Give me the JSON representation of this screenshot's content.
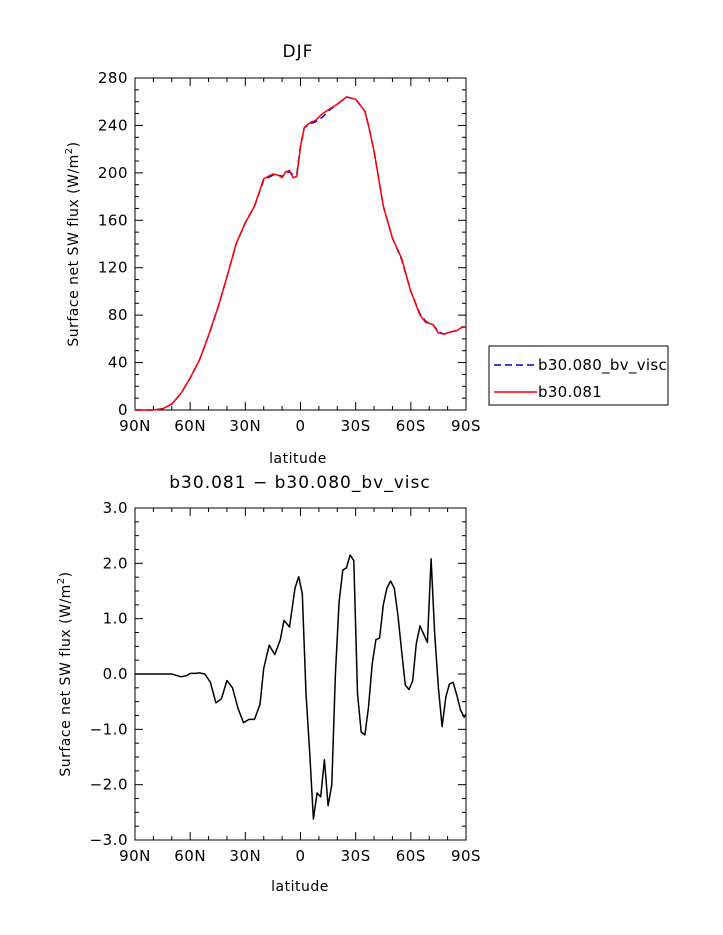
{
  "chart_data": [
    {
      "type": "line",
      "title": "DJF",
      "xlabel": "latitude",
      "ylabel": "Surface net SW flux (W/m",
      "ylabel_sup": "2",
      "ylabel_end": ")",
      "xlim": [
        90,
        -90
      ],
      "ylim": [
        0,
        280
      ],
      "x_ticks": [
        90,
        60,
        30,
        0,
        -30,
        -60,
        -90
      ],
      "x_tick_labels": [
        "90N",
        "60N",
        "30N",
        "0",
        "30S",
        "60S",
        "90S"
      ],
      "y_ticks": [
        0,
        40,
        80,
        120,
        160,
        200,
        240,
        280
      ],
      "y_tick_labels": [
        "0",
        "40",
        "80",
        "120",
        "160",
        "200",
        "240",
        "280"
      ],
      "grid": false,
      "legend": "right",
      "x": [
        90,
        85,
        80,
        75,
        70,
        65,
        60,
        55,
        50,
        45,
        40,
        35,
        30,
        25,
        20,
        15,
        12,
        10,
        8,
        6,
        4,
        2,
        0,
        -2,
        -4,
        -6,
        -8,
        -10,
        -12,
        -15,
        -20,
        -25,
        -30,
        -35,
        -37,
        -40,
        -45,
        -50,
        -55,
        -60,
        -65,
        -68,
        -70,
        -72,
        -75,
        -78,
        -80,
        -82,
        -85,
        -88,
        -90
      ],
      "series": [
        {
          "name": "b30.080_bv_visc",
          "color": "#0000cc",
          "dash": true,
          "values": [
            0,
            0,
            0,
            1,
            5,
            14,
            27,
            42,
            63,
            86,
            112,
            140,
            158,
            172,
            194,
            198,
            198,
            197,
            199,
            201,
            198,
            199,
            223,
            238,
            240,
            242,
            243,
            245,
            247,
            252,
            258,
            264,
            262,
            252,
            240,
            218,
            172,
            145,
            127,
            100,
            81,
            75,
            73,
            72,
            66,
            64,
            65,
            66,
            67,
            70,
            70
          ]
        },
        {
          "name": "b30.081",
          "color": "#ff0000",
          "dash": false,
          "values": [
            0,
            0,
            0,
            1,
            5,
            14,
            27,
            42,
            63,
            86,
            112,
            140,
            158,
            172,
            195,
            199,
            198,
            196,
            201,
            202,
            196,
            197,
            222,
            238,
            241,
            243,
            244,
            247,
            250,
            253,
            258,
            264,
            262,
            252,
            240,
            218,
            172,
            145,
            128,
            100,
            80,
            74,
            73,
            72,
            65,
            64,
            65,
            66,
            67,
            70,
            70
          ]
        }
      ]
    },
    {
      "type": "line",
      "title": "b30.081 − b30.080_bv_visc",
      "xlabel": "latitude",
      "ylabel": "Surface net SW flux (W/m",
      "ylabel_sup": "2",
      "ylabel_end": ")",
      "xlim": [
        90,
        -90
      ],
      "ylim": [
        -3.0,
        3.0
      ],
      "x_ticks": [
        90,
        60,
        30,
        0,
        -30,
        -60,
        -90
      ],
      "x_tick_labels": [
        "90N",
        "60N",
        "30N",
        "0",
        "30S",
        "60S",
        "90S"
      ],
      "y_ticks": [
        -3,
        -2,
        -1,
        0,
        1,
        2,
        3
      ],
      "y_tick_labels": [
        "−3.0",
        "−2.0",
        "−1.0",
        "0.0",
        "1.0",
        "2.0",
        "3.0"
      ],
      "grid": false,
      "series": [
        {
          "color": "#000000",
          "x": [
            90,
            70,
            67,
            65,
            62,
            60,
            57,
            55,
            52,
            49,
            46,
            43,
            40,
            37,
            34,
            31,
            28,
            25,
            22,
            20,
            17,
            14,
            11,
            9,
            6,
            3,
            1,
            -1,
            -3,
            -5,
            -7,
            -9,
            -11,
            -13,
            -15,
            -17,
            -19,
            -21,
            -23,
            -25,
            -27,
            -29,
            -31,
            -33,
            -35,
            -37,
            -39,
            -41,
            -43,
            -45,
            -47,
            -49,
            -51,
            -53,
            -55,
            -57,
            -59,
            -61,
            -63,
            -65,
            -67,
            -69,
            -71,
            -73,
            -75,
            -77,
            -79,
            -81,
            -83,
            -85,
            -87,
            -89,
            -90
          ],
          "values": [
            0,
            0,
            -0.03,
            -0.05,
            -0.03,
            0.01,
            0.01,
            0.02,
            0.0,
            -0.15,
            -0.52,
            -0.45,
            -0.12,
            -0.25,
            -0.62,
            -0.88,
            -0.82,
            -0.82,
            -0.55,
            0.1,
            0.52,
            0.35,
            0.62,
            0.97,
            0.85,
            1.55,
            1.76,
            1.45,
            -0.35,
            -1.42,
            -2.62,
            -2.15,
            -2.22,
            -1.55,
            -2.38,
            -2.0,
            0.0,
            1.3,
            1.88,
            1.92,
            2.15,
            2.05,
            -0.35,
            -1.05,
            -1.1,
            -0.6,
            0.18,
            0.62,
            0.65,
            1.25,
            1.55,
            1.68,
            1.55,
            1.05,
            0.42,
            -0.2,
            -0.28,
            -0.12,
            0.55,
            0.87,
            0.72,
            0.57,
            2.08,
            0.72,
            -0.25,
            -0.95,
            -0.42,
            -0.18,
            -0.15,
            -0.38,
            -0.65,
            -0.78,
            -0.72
          ]
        }
      ]
    }
  ]
}
